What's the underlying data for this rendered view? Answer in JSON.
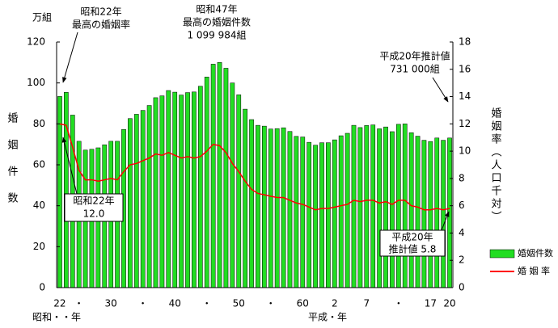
{
  "chart_data": {
    "type": "bar-line",
    "left_unit": "万組",
    "left_axis_title": "婚姻件数",
    "right_axis_title": "婚姻率（人口千対）",
    "x_era_label_showa": "昭和・・年",
    "x_era_label_heisei": "平成・年",
    "categories": [
      "22",
      null,
      null,
      "・",
      null,
      null,
      null,
      null,
      "30",
      null,
      null,
      null,
      null,
      "・",
      null,
      null,
      null,
      null,
      "40",
      null,
      null,
      null,
      null,
      "・",
      null,
      null,
      null,
      null,
      "50",
      null,
      null,
      null,
      null,
      "・",
      null,
      null,
      null,
      null,
      "60",
      null,
      null,
      null,
      null,
      "2",
      null,
      null,
      null,
      null,
      "7",
      null,
      null,
      null,
      null,
      "・",
      null,
      null,
      null,
      null,
      "17",
      null,
      null,
      "20"
    ],
    "series": [
      {
        "name": "婚姻件数",
        "color": "#22dd22",
        "axis": "y",
        "values": [
          93.4,
          95.4,
          84.3,
          71.5,
          67.2,
          67.6,
          68.3,
          69.8,
          71.5,
          71.5,
          77.3,
          82.6,
          84.7,
          86.6,
          89.0,
          92.8,
          93.7,
          96.3,
          95.5,
          94.1,
          95.3,
          95.6,
          98.4,
          102.9,
          109.2,
          110.0,
          107.2,
          100.0,
          94.2,
          87.2,
          82.1,
          79.3,
          78.9,
          77.5,
          77.7,
          78.1,
          76.3,
          73.9,
          73.6,
          71.0,
          69.6,
          70.8,
          70.8,
          72.2,
          74.2,
          75.4,
          79.3,
          78.2,
          79.2,
          79.5,
          77.6,
          78.5,
          76.2,
          79.8,
          80.0,
          75.7,
          74.0,
          72.0,
          71.4,
          73.1,
          72.0,
          73.1
        ]
      },
      {
        "name": "婚 姻 率",
        "color": "#ff0000",
        "axis": "y2",
        "values": [
          12.0,
          11.9,
          10.3,
          8.6,
          7.9,
          7.9,
          7.8,
          7.9,
          8.0,
          7.9,
          8.5,
          9.0,
          9.1,
          9.3,
          9.5,
          9.8,
          9.7,
          9.9,
          9.7,
          9.5,
          9.6,
          9.5,
          9.6,
          10.0,
          10.5,
          10.4,
          9.9,
          9.1,
          8.5,
          7.8,
          7.2,
          6.9,
          6.8,
          6.7,
          6.6,
          6.6,
          6.4,
          6.2,
          6.1,
          5.9,
          5.7,
          5.8,
          5.8,
          5.9,
          6.0,
          6.1,
          6.4,
          6.3,
          6.4,
          6.4,
          6.2,
          6.3,
          6.1,
          6.4,
          6.4,
          6.0,
          5.9,
          5.7,
          5.7,
          5.8,
          5.7,
          5.8
        ]
      }
    ],
    "ylim": [
      0,
      120
    ],
    "yticks": [
      0,
      20,
      40,
      60,
      80,
      100,
      120
    ],
    "y2lim": [
      0,
      18
    ],
    "y2ticks": [
      0,
      2,
      4,
      6,
      8,
      10,
      12,
      14,
      16,
      18
    ],
    "annotations": [
      {
        "lines": [
          "昭和22年",
          "最高の婚姻率"
        ]
      },
      {
        "lines": [
          "昭和47年",
          "最高の婚姻件数",
          "1 099 984組"
        ]
      },
      {
        "lines": [
          "平成20年推計値",
          "731 000組"
        ]
      },
      {
        "lines": [
          "昭和22年",
          "12.0"
        ]
      },
      {
        "lines": [
          "平成20年",
          "推計値  5.8"
        ]
      }
    ]
  }
}
